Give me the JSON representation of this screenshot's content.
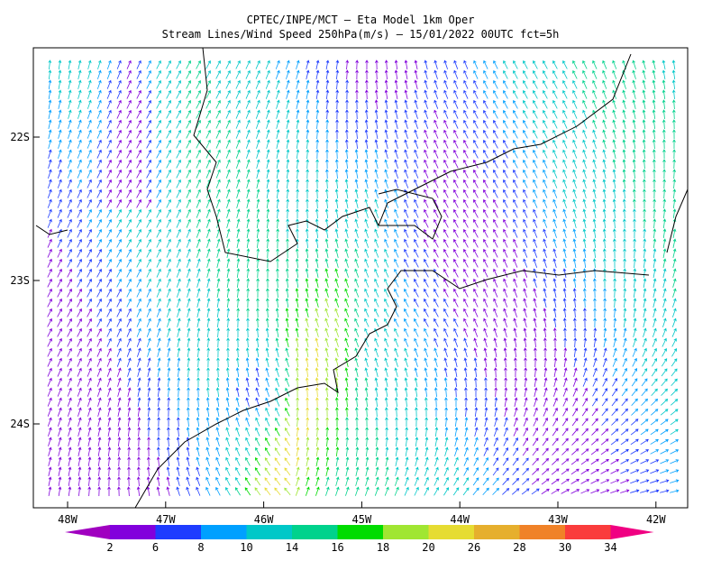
{
  "header": {
    "title": "CPTEC/INPE/MCT —  Eta Model 1km Oper",
    "subtitle": "Stream Lines/Wind Speed 250hPa(m/s) — 15/01/2022 00UTC fct=5h"
  },
  "axes": {
    "lat_labels": [
      "22S",
      "23S",
      "24S"
    ],
    "lon_labels": [
      "48W",
      "47W",
      "46W",
      "45W",
      "44W",
      "43W",
      "42W"
    ]
  },
  "colorbar": {
    "labels": [
      2,
      6,
      8,
      10,
      14,
      16,
      18,
      20,
      26,
      28,
      30,
      34
    ],
    "colors": [
      "#a000c0",
      "#8200dc",
      "#1e3cff",
      "#00a0ff",
      "#00c8c8",
      "#00d28c",
      "#00dc00",
      "#a0e632",
      "#e6dc32",
      "#e6af2d",
      "#f08228",
      "#fa3c3c",
      "#f00082"
    ]
  }
}
